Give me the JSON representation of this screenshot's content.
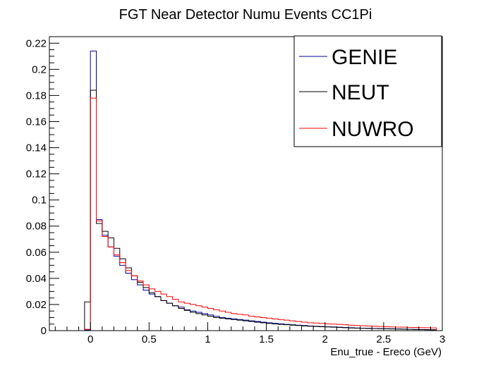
{
  "chart_data": {
    "type": "line",
    "title": "FGT Near Detector Numu Events CC1Pi",
    "xlabel": "Enu_true - Ereco (GeV)",
    "ylabel": "",
    "xlim": [
      -0.35,
      3.0
    ],
    "ylim": [
      0,
      0.225
    ],
    "x_ticks": [
      0,
      0.5,
      1,
      1.5,
      2,
      2.5,
      3
    ],
    "x_tick_labels": [
      "0",
      "0.5",
      "1",
      "1.5",
      "2",
      "2.5",
      "3"
    ],
    "y_ticks": [
      0,
      0.02,
      0.04,
      0.06,
      0.08,
      0.1,
      0.12,
      0.14,
      0.16,
      0.18,
      0.2,
      0.22
    ],
    "y_tick_labels": [
      "0",
      "0.02",
      "0.04",
      "0.06",
      "0.08",
      "0.1",
      "0.12",
      "0.14",
      "0.16",
      "0.18",
      "0.2",
      "0.22"
    ],
    "grid": false,
    "legend_position": "top-right",
    "bin_edges": [
      -0.35,
      -0.3,
      -0.25,
      -0.2,
      -0.15,
      -0.1,
      -0.05,
      0,
      0.05,
      0.1,
      0.15,
      0.2,
      0.25,
      0.3,
      0.35,
      0.4,
      0.45,
      0.5,
      0.55,
      0.6,
      0.65,
      0.7,
      0.75,
      0.8,
      0.85,
      0.9,
      0.95,
      1,
      1.05,
      1.1,
      1.15,
      1.2,
      1.25,
      1.3,
      1.35,
      1.4,
      1.45,
      1.5,
      1.55,
      1.6,
      1.65,
      1.7,
      1.75,
      1.8,
      1.85,
      1.9,
      1.95,
      2,
      2.05,
      2.1,
      2.15,
      2.2,
      2.25,
      2.3,
      2.35,
      2.4,
      2.45,
      2.5,
      2.55,
      2.6,
      2.65,
      2.7,
      2.75,
      2.8,
      2.85,
      2.9,
      2.95,
      3
    ],
    "series": [
      {
        "name": "GENIE",
        "color": "#000099",
        "values": [
          0,
          0,
          0,
          0,
          0,
          0,
          0.0005,
          0.214,
          0.085,
          0.073,
          0.064,
          0.057,
          0.05,
          0.044,
          0.039,
          0.035,
          0.031,
          0.028,
          0.026,
          0.023,
          0.021,
          0.019,
          0.018,
          0.016,
          0.015,
          0.014,
          0.013,
          0.012,
          0.011,
          0.01,
          0.0095,
          0.009,
          0.0085,
          0.008,
          0.0075,
          0.007,
          0.0065,
          0.006,
          0.0056,
          0.0052,
          0.0048,
          0.0045,
          0.0042,
          0.0039,
          0.0036,
          0.0034,
          0.0032,
          0.003,
          0.0028,
          0.0026,
          0.0024,
          0.0022,
          0.002,
          0.0019,
          0.0018,
          0.0017,
          0.0016,
          0.0015,
          0.0014,
          0.0013,
          0.0012,
          0.0011,
          0.001,
          0.0009,
          0.0008,
          0.0007,
          0
        ]
      },
      {
        "name": "NEUT",
        "color": "#000000",
        "values": [
          0,
          0,
          0,
          0,
          0,
          0,
          0.022,
          0.184,
          0.082,
          0.076,
          0.071,
          0.063,
          0.055,
          0.048,
          0.042,
          0.037,
          0.033,
          0.029,
          0.026,
          0.023,
          0.021,
          0.019,
          0.017,
          0.0155,
          0.014,
          0.013,
          0.012,
          0.011,
          0.01,
          0.0095,
          0.009,
          0.0085,
          0.008,
          0.0075,
          0.007,
          0.0065,
          0.006,
          0.0055,
          0.0052,
          0.0048,
          0.0045,
          0.0042,
          0.0039,
          0.0036,
          0.0034,
          0.0032,
          0.003,
          0.0028,
          0.0026,
          0.0024,
          0.0022,
          0.002,
          0.0019,
          0.0018,
          0.0017,
          0.0016,
          0.0015,
          0.0014,
          0.0013,
          0.0012,
          0.0011,
          0.001,
          0.0009,
          0.0008,
          0.0007,
          0.0006,
          0
        ]
      },
      {
        "name": "NUWRO",
        "color": "#ff0000",
        "values": [
          0,
          0,
          0,
          0,
          0,
          0,
          0.001,
          0.178,
          0.084,
          0.072,
          0.064,
          0.058,
          0.052,
          0.046,
          0.042,
          0.038,
          0.035,
          0.032,
          0.03,
          0.028,
          0.026,
          0.024,
          0.022,
          0.021,
          0.02,
          0.019,
          0.018,
          0.017,
          0.016,
          0.015,
          0.014,
          0.013,
          0.0125,
          0.012,
          0.011,
          0.0105,
          0.01,
          0.0095,
          0.009,
          0.0085,
          0.008,
          0.0075,
          0.007,
          0.0065,
          0.006,
          0.0058,
          0.0055,
          0.0052,
          0.005,
          0.0048,
          0.0045,
          0.0042,
          0.004,
          0.0038,
          0.0036,
          0.0034,
          0.0032,
          0.003,
          0.0028,
          0.0027,
          0.0026,
          0.0025,
          0.0024,
          0.0023,
          0.0022,
          0.0021,
          0
        ]
      }
    ]
  }
}
